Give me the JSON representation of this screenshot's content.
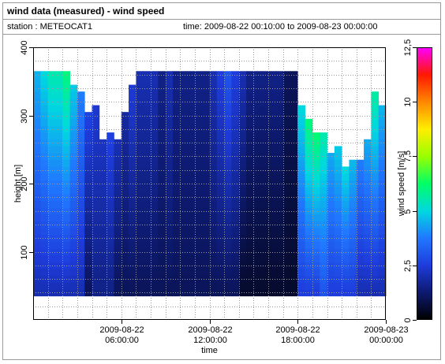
{
  "header": {
    "title": "wind data (measured) - wind speed",
    "station_label": "station : METEOCAT1",
    "time_range": "time: 2009-08-22 00:10:00 to 2009-08-23 00:00:00"
  },
  "chart_data": {
    "type": "heatmap",
    "xlabel": "time",
    "ylabel": "height [m]",
    "x_range": [
      "2009-08-22 00:00:00",
      "2009-08-23 00:00:00"
    ],
    "x_ticks": [
      {
        "time": "06:00:00",
        "label1": "2009-08-22",
        "label2": "06:00:00"
      },
      {
        "time": "12:00:00",
        "label1": "2009-08-22",
        "label2": "12:00:00"
      },
      {
        "time": "18:00:00",
        "label1": "2009-08-22",
        "label2": "18:00:00"
      },
      {
        "time": "24:00:00",
        "label1": "2009-08-23",
        "label2": "00:00:00"
      }
    ],
    "ylim": [
      0,
      400
    ],
    "y_ticks": [
      100,
      200,
      300,
      400
    ],
    "grid": true,
    "heights": [
      40,
      50,
      60,
      70,
      80,
      90,
      100,
      110,
      120,
      130,
      140,
      150,
      160,
      170,
      180,
      190,
      200,
      210,
      220,
      230,
      240,
      250,
      260,
      270,
      280,
      290,
      300,
      310,
      320,
      330,
      340,
      350,
      360
    ],
    "sample_hours": [
      0.25,
      0.75,
      1.25,
      1.75,
      2.25,
      2.75,
      3.25,
      3.75,
      4.25,
      4.75,
      5.25,
      5.75,
      6.25,
      6.75,
      7.25,
      7.75,
      8.25,
      8.75,
      9.25,
      9.75,
      10.25,
      10.75,
      11.25,
      11.75,
      12.25,
      12.75,
      13.25,
      13.75,
      14.25,
      14.75,
      15.25,
      15.75,
      16.25,
      16.75,
      17.25,
      17.75,
      18.25,
      18.75,
      19.25,
      19.75,
      20.25,
      20.75,
      21.25,
      21.75,
      22.25,
      22.75,
      23.25,
      23.75
    ],
    "wind_speed_bottom": [
      2.0,
      2.0,
      2.0,
      2.0,
      2.0,
      2.0,
      2.0,
      1.0,
      1.5,
      1.5,
      1.5,
      1.0,
      1.0,
      1.0,
      1.0,
      1.0,
      1.0,
      1.0,
      1.0,
      1.0,
      1.0,
      1.0,
      1.0,
      1.0,
      1.0,
      1.0,
      1.0,
      1.0,
      0.5,
      0.5,
      0.5,
      0.5,
      0.5,
      0.5,
      0.5,
      0.5,
      2.5,
      2.5,
      2.5,
      3.0,
      2.5,
      2.5,
      2.5,
      2.5,
      2.0,
      2.0,
      2.0,
      2.0
    ],
    "wind_speed_top": [
      4.5,
      5.0,
      5.5,
      5.5,
      6.0,
      5.0,
      4.0,
      3.0,
      2.5,
      2.5,
      3.0,
      2.5,
      2.0,
      2.5,
      2.0,
      2.0,
      2.0,
      1.5,
      2.0,
      1.5,
      1.5,
      1.5,
      1.5,
      1.5,
      2.0,
      2.5,
      3.0,
      2.5,
      2.0,
      1.5,
      1.5,
      1.5,
      1.5,
      1.5,
      1.0,
      1.0,
      5.5,
      7.0,
      7.5,
      6.5,
      5.5,
      6.0,
      7.0,
      6.0,
      5.0,
      5.5,
      6.0,
      5.0
    ],
    "top_height": [
      360,
      360,
      360,
      360,
      360,
      340,
      330,
      300,
      310,
      260,
      270,
      260,
      300,
      340,
      360,
      360,
      360,
      360,
      360,
      360,
      360,
      360,
      360,
      360,
      360,
      360,
      360,
      360,
      360,
      360,
      360,
      360,
      360,
      360,
      360,
      360,
      310,
      290,
      270,
      270,
      240,
      250,
      220,
      230,
      230,
      260,
      330,
      310
    ],
    "colorbar": {
      "label": "wind speed [m/s]",
      "range": [
        0,
        12.5
      ],
      "ticks": [
        0,
        2.5,
        5,
        7.5,
        10,
        12.5
      ],
      "tick_labels": [
        "0",
        "2,5",
        "5",
        "7,5",
        "10",
        "12,5"
      ],
      "color_stops": [
        "#000000",
        "#0d1a70",
        "#1e3cdc",
        "#2078ff",
        "#00d8e0",
        "#00ff66",
        "#99ff00",
        "#ffee00",
        "#ff8800",
        "#ff1800",
        "#ff00ff"
      ]
    }
  }
}
